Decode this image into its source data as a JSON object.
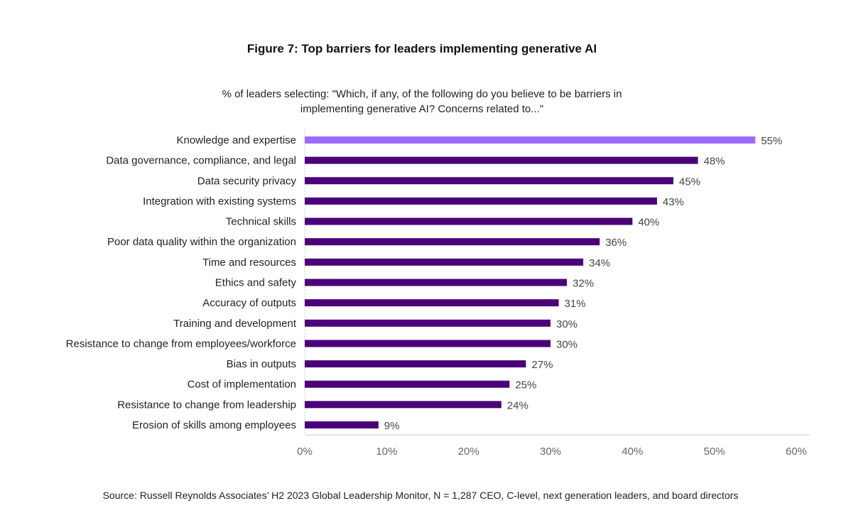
{
  "chart_data": {
    "type": "bar",
    "orientation": "horizontal",
    "title": "Figure 7: Top barriers for leaders implementing generative AI",
    "subtitle": [
      "% of leaders selecting: \"Which, if any, of the following do you believe to be barriers in",
      "implementing generative AI?  Concerns related to...\""
    ],
    "categories": [
      "Knowledge and expertise",
      "Data governance, compliance, and legal",
      "Data security privacy",
      "Integration with existing systems",
      "Technical skills",
      "Poor data quality within the organization",
      "Time and resources",
      "Ethics and safety",
      "Accuracy of outputs",
      "Training and development",
      "Resistance to change from employees/workforce",
      "Bias in outputs",
      "Cost of implementation",
      "Resistance to change from leadership",
      "Erosion of skills among employees"
    ],
    "values": [
      55,
      48,
      45,
      43,
      40,
      36,
      34,
      32,
      31,
      30,
      30,
      27,
      25,
      24,
      9
    ],
    "labels": [
      "55%",
      "48%",
      "45%",
      "43%",
      "40%",
      "36%",
      "34%",
      "32%",
      "31%",
      "30%",
      "30%",
      "27%",
      "25%",
      "24%",
      "9%"
    ],
    "xlim": [
      0,
      60
    ],
    "xticks": [
      "0%",
      "10%",
      "20%",
      "30%",
      "40%",
      "50%",
      "60%"
    ],
    "grid": false,
    "colors": {
      "highlight": "#9d6afb",
      "bar": "#4b0079"
    },
    "source": "Source: Russell Reynolds Associates’ H2 2023 Global Leadership Monitor, N = 1,287 CEO, C-level, next generation leaders, and board directors"
  }
}
